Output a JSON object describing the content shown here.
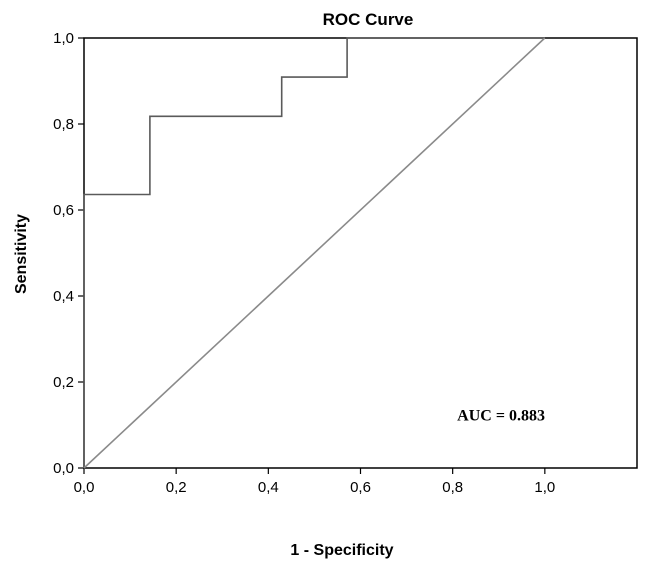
{
  "chart_data": {
    "type": "line",
    "title": "ROC Curve",
    "xlabel": "1 - Specificity",
    "ylabel": "Sensitivity",
    "xlim": [
      0,
      1.2
    ],
    "ylim": [
      0,
      1
    ],
    "grid": false,
    "x_ticks": [
      {
        "value": 0.0,
        "label": "0,0"
      },
      {
        "value": 0.2,
        "label": "0,2"
      },
      {
        "value": 0.4,
        "label": "0,4"
      },
      {
        "value": 0.6,
        "label": "0,6"
      },
      {
        "value": 0.8,
        "label": "0,8"
      },
      {
        "value": 1.0,
        "label": "1,0"
      }
    ],
    "y_ticks": [
      {
        "value": 0.0,
        "label": "0,0"
      },
      {
        "value": 0.2,
        "label": "0,2"
      },
      {
        "value": 0.4,
        "label": "0,4"
      },
      {
        "value": 0.6,
        "label": "0,6"
      },
      {
        "value": 0.8,
        "label": "0,8"
      },
      {
        "value": 1.0,
        "label": "1,0"
      }
    ],
    "series": [
      {
        "kind": "step",
        "color": "#5a5a5a",
        "x": [
          0,
          0,
          0.143,
          0.143,
          0.429,
          0.429,
          0.571,
          0.571,
          1.0
        ],
        "y": [
          0,
          0.636,
          0.636,
          0.818,
          0.818,
          0.909,
          0.909,
          1.0,
          1.0
        ]
      },
      {
        "kind": "reference",
        "color": "#8a8a8a",
        "x": [
          0,
          1.0
        ],
        "y": [
          0,
          1.0
        ]
      }
    ],
    "annotations": [
      {
        "text": "AUC = 0.883",
        "x": 0.905,
        "y": 0.11
      }
    ]
  }
}
